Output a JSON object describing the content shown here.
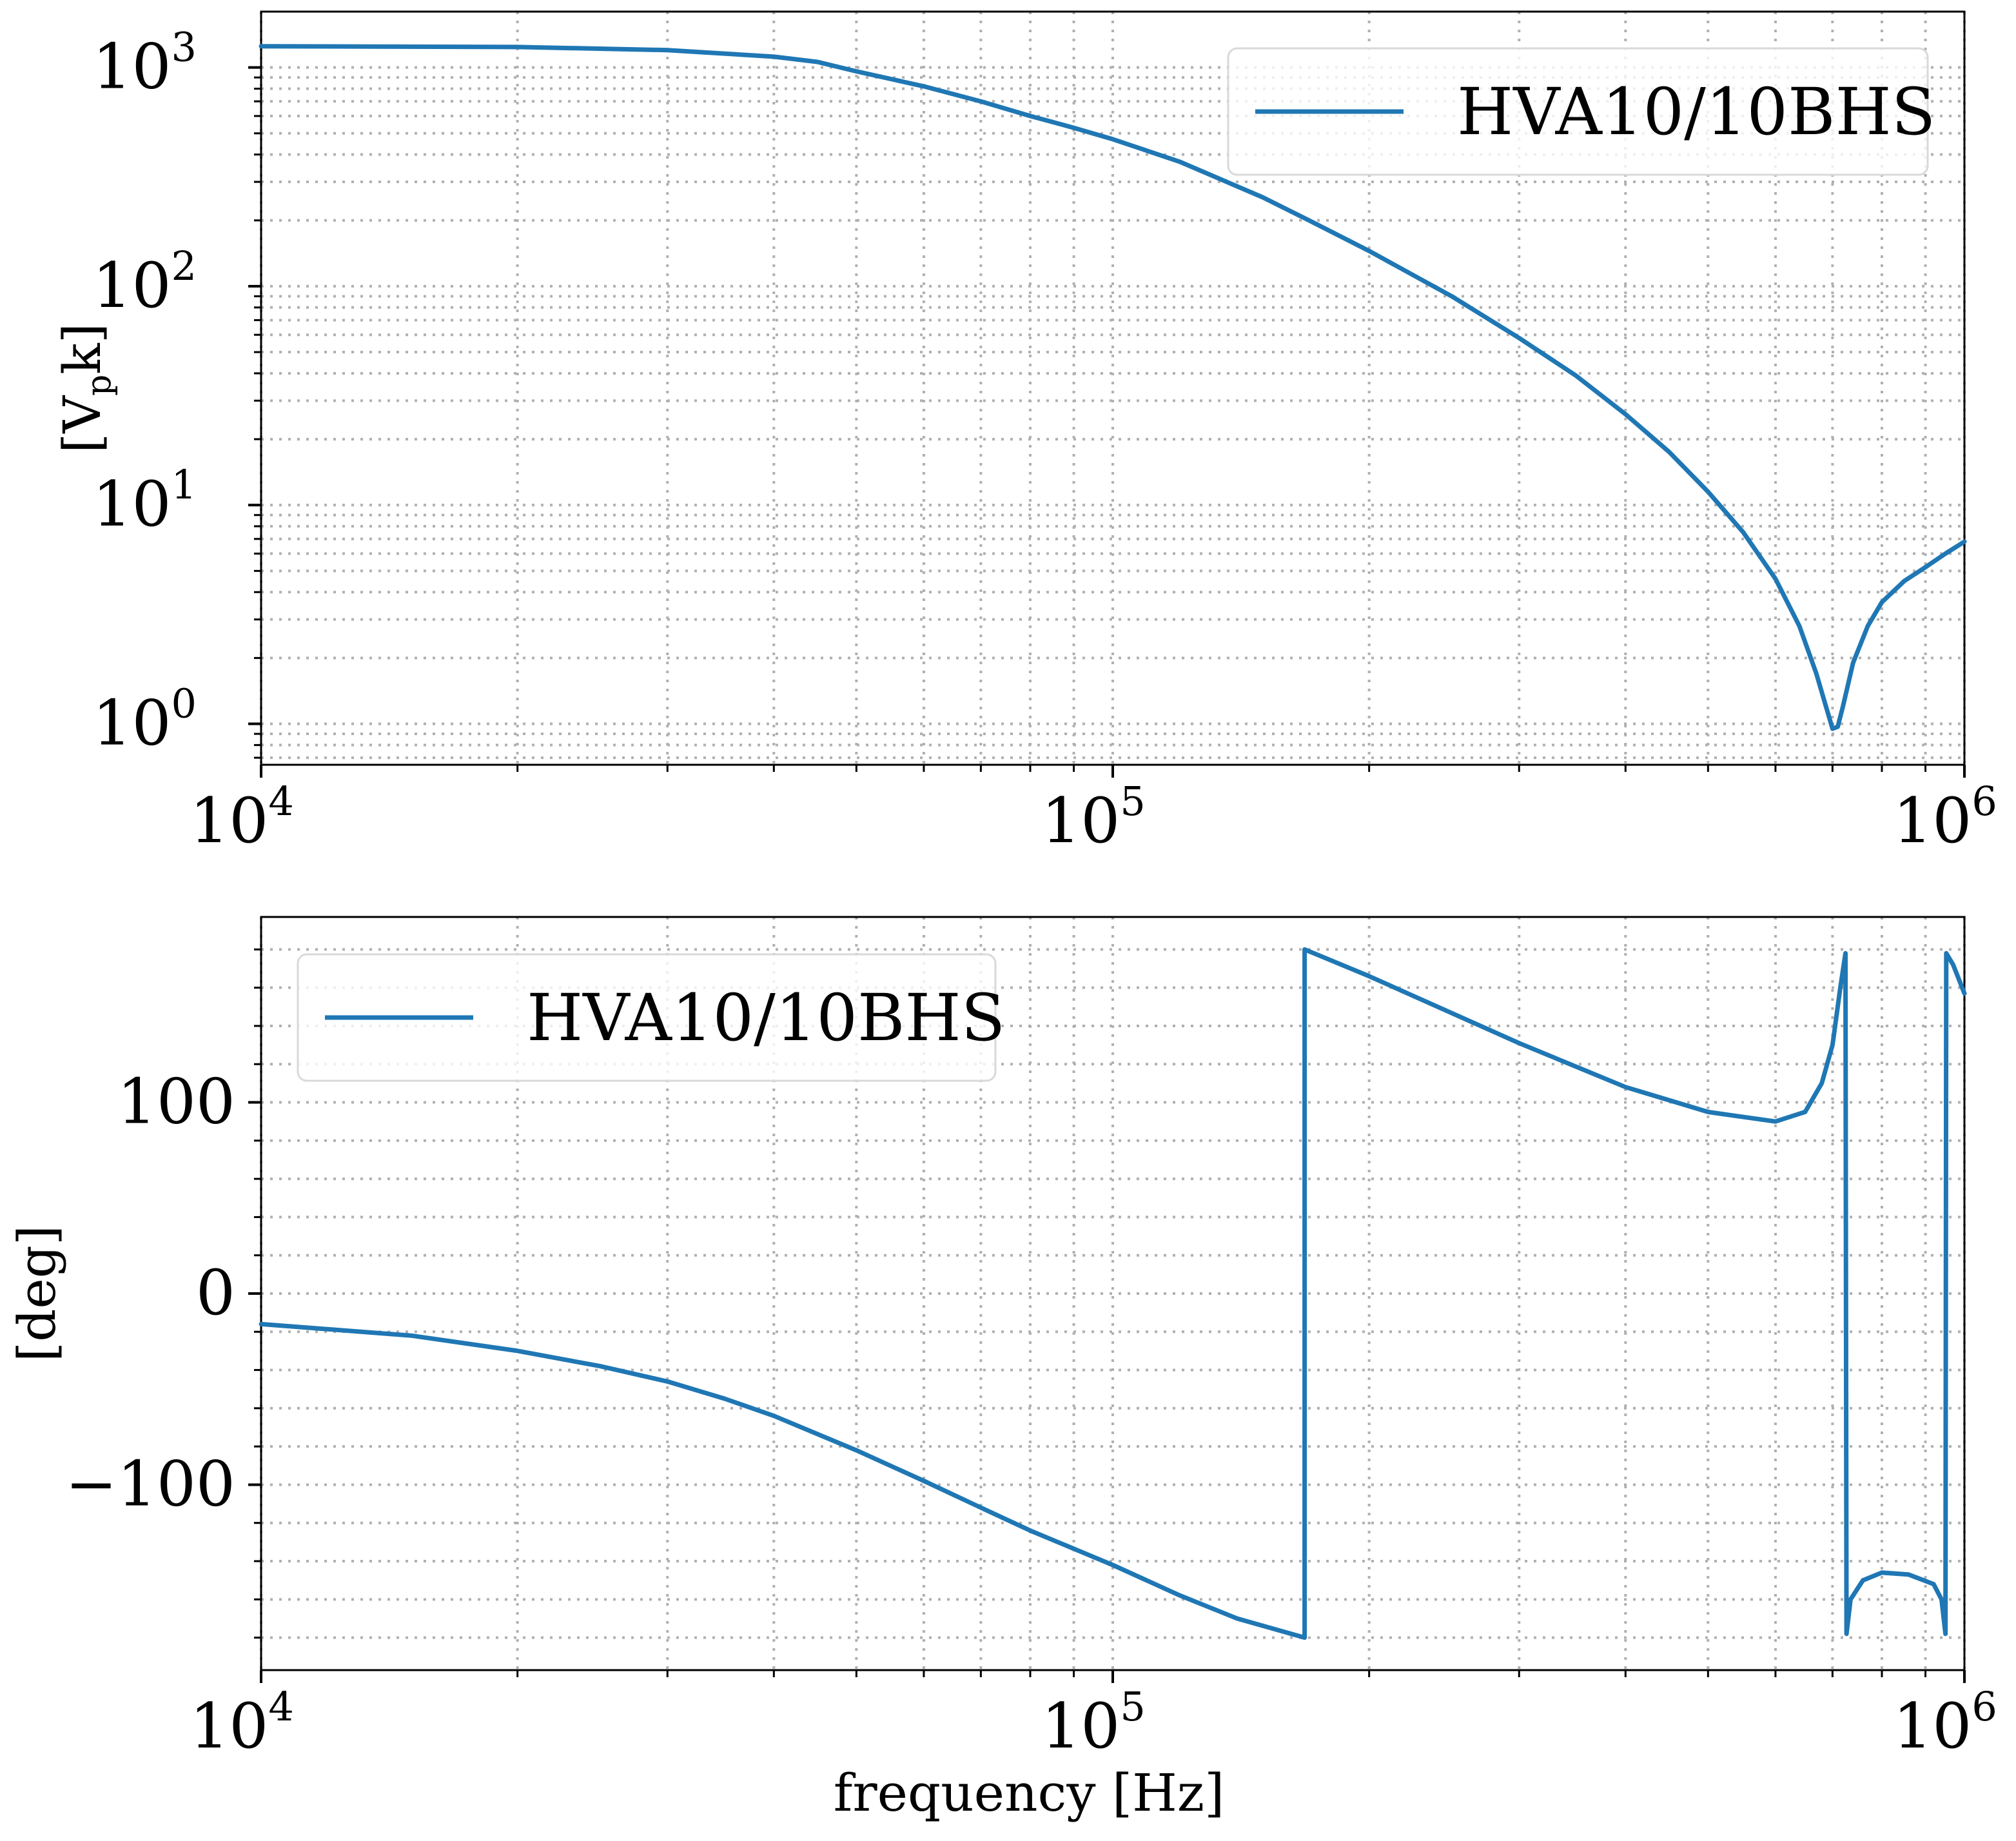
{
  "chart_data": [
    {
      "type": "line",
      "xscale": "log",
      "yscale": "log",
      "xlim": [
        10000,
        1000000
      ],
      "ylim": [
        0.65,
        1800
      ],
      "x_ticks": [
        {
          "value": 10000,
          "base": "10",
          "exp": "4"
        },
        {
          "value": 100000,
          "base": "10",
          "exp": "5"
        },
        {
          "value": 1000000,
          "base": "10",
          "exp": "6"
        }
      ],
      "y_ticks": [
        {
          "value": 1,
          "base": "10",
          "exp": "0"
        },
        {
          "value": 10,
          "base": "10",
          "exp": "1"
        },
        {
          "value": 100,
          "base": "10",
          "exp": "2"
        },
        {
          "value": 1000,
          "base": "10",
          "exp": "3"
        }
      ],
      "xlabel": "",
      "ylabel": "[V_pk]",
      "ylabel_parts": {
        "open": "[V",
        "sub": "p",
        "close": "k]"
      },
      "grid": true,
      "legend_position": "top-right",
      "series": [
        {
          "name": "HVA10/10BHS",
          "color": "#1f77b4",
          "points": [
            [
              10000,
              1250
            ],
            [
              20000,
              1240
            ],
            [
              30000,
              1200
            ],
            [
              40000,
              1120
            ],
            [
              45000,
              1060
            ],
            [
              50000,
              960
            ],
            [
              60000,
              820
            ],
            [
              70000,
              700
            ],
            [
              80000,
              600
            ],
            [
              90000,
              530
            ],
            [
              100000,
              470
            ],
            [
              120000,
              370
            ],
            [
              150000,
              255
            ],
            [
              170000,
              200
            ],
            [
              200000,
              145
            ],
            [
              250000,
              90
            ],
            [
              300000,
              58
            ],
            [
              350000,
              39
            ],
            [
              400000,
              26
            ],
            [
              450000,
              17.5
            ],
            [
              500000,
              11.5
            ],
            [
              550000,
              7.5
            ],
            [
              600000,
              4.6
            ],
            [
              640000,
              2.8
            ],
            [
              670000,
              1.7
            ],
            [
              690000,
              1.15
            ],
            [
              700000,
              0.95
            ],
            [
              710000,
              0.97
            ],
            [
              720000,
              1.2
            ],
            [
              740000,
              1.9
            ],
            [
              770000,
              2.8
            ],
            [
              800000,
              3.6
            ],
            [
              850000,
              4.5
            ],
            [
              900000,
              5.2
            ],
            [
              950000,
              6.0
            ],
            [
              1000000,
              6.8
            ]
          ]
        }
      ]
    },
    {
      "type": "line",
      "xscale": "log",
      "yscale": "linear",
      "xlim": [
        10000,
        1000000
      ],
      "ylim": [
        -197,
        197
      ],
      "x_ticks": [
        {
          "value": 10000,
          "base": "10",
          "exp": "4"
        },
        {
          "value": 100000,
          "base": "10",
          "exp": "5"
        },
        {
          "value": 1000000,
          "base": "10",
          "exp": "6"
        }
      ],
      "y_ticks": [
        {
          "value": -100,
          "label": "−100"
        },
        {
          "value": 0,
          "label": "0"
        },
        {
          "value": 100,
          "label": "100"
        }
      ],
      "xlabel": "frequency [Hz]",
      "ylabel": "[deg]",
      "grid": true,
      "legend_position": "top-left",
      "series": [
        {
          "name": "HVA10/10BHS",
          "color": "#1f77b4",
          "points": [
            [
              10000,
              -16
            ],
            [
              15000,
              -22
            ],
            [
              20000,
              -30
            ],
            [
              25000,
              -38
            ],
            [
              30000,
              -46
            ],
            [
              35000,
              -55
            ],
            [
              40000,
              -64
            ],
            [
              50000,
              -82
            ],
            [
              60000,
              -98
            ],
            [
              70000,
              -112
            ],
            [
              80000,
              -124
            ],
            [
              100000,
              -142
            ],
            [
              120000,
              -158
            ],
            [
              140000,
              -170
            ],
            [
              168000,
              -180
            ],
            [
              168001,
              180
            ],
            [
              200000,
              166
            ],
            [
              300000,
              131
            ],
            [
              400000,
              108
            ],
            [
              500000,
              95
            ],
            [
              600000,
              90
            ],
            [
              650000,
              95
            ],
            [
              680000,
              110
            ],
            [
              700000,
              130
            ],
            [
              715000,
              160
            ],
            [
              725000,
              178
            ],
            [
              727000,
              -178
            ],
            [
              735000,
              -160
            ],
            [
              760000,
              -150
            ],
            [
              800000,
              -146
            ],
            [
              860000,
              -147
            ],
            [
              920000,
              -152
            ],
            [
              940000,
              -160
            ],
            [
              950000,
              -178
            ],
            [
              952000,
              178
            ],
            [
              970000,
              172
            ],
            [
              1000000,
              157
            ]
          ]
        }
      ]
    }
  ]
}
